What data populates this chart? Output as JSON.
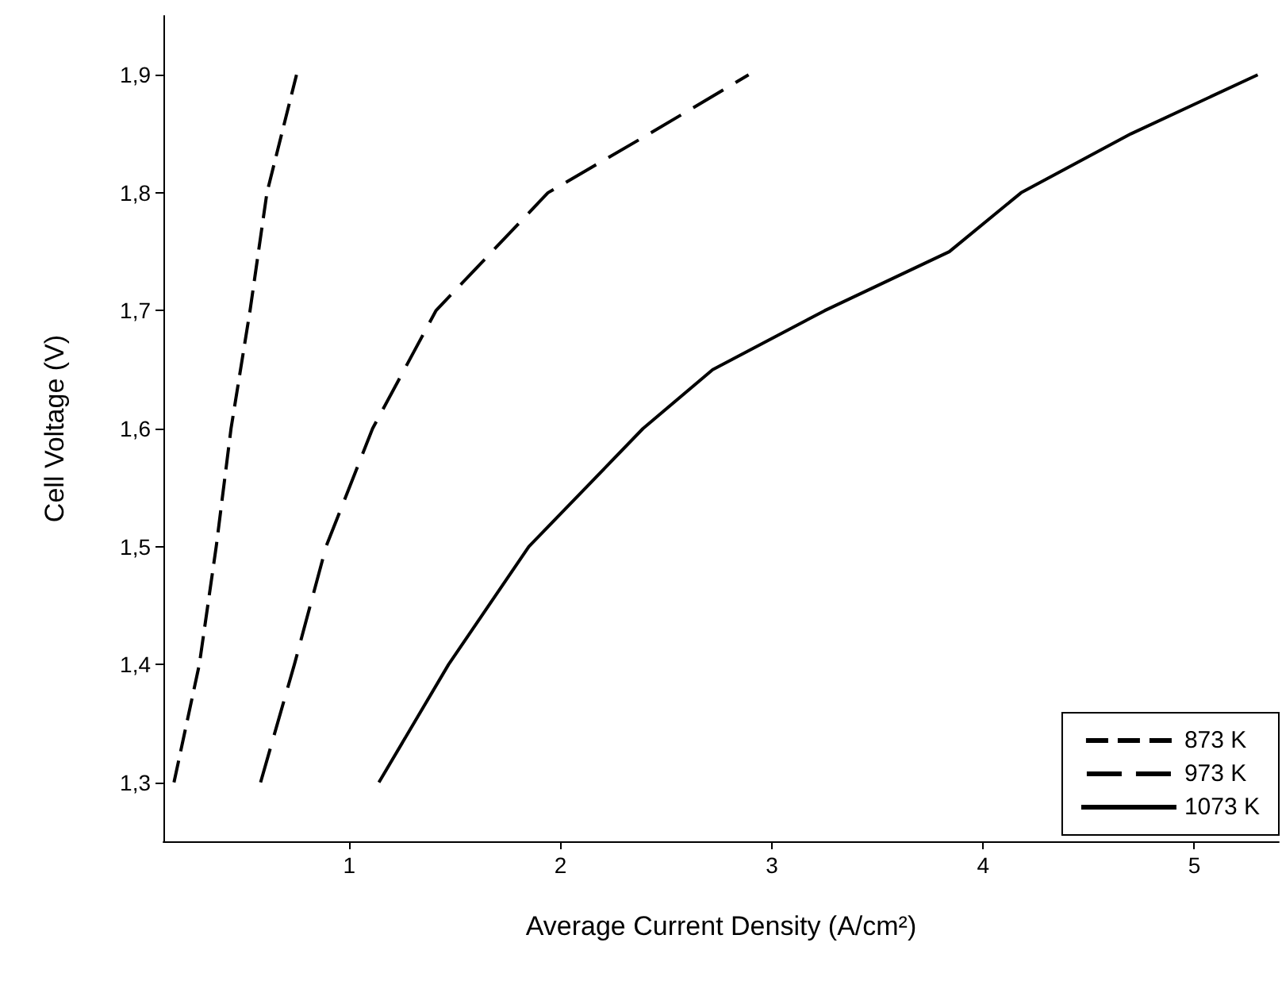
{
  "chart_data": {
    "type": "line",
    "xlabel": "Average Current Density (A/cm²)",
    "ylabel": "Cell Voltage (V)",
    "xlim": [
      0.12,
      5.4
    ],
    "xticks": [
      1,
      2,
      3,
      4,
      5
    ],
    "ylim": [
      1.25,
      1.95
    ],
    "yticks": [
      {
        "value": 1.3,
        "label": "1,3"
      },
      {
        "value": 1.4,
        "label": "1,4"
      },
      {
        "value": 1.5,
        "label": "1,5"
      },
      {
        "value": 1.6,
        "label": "1,6"
      },
      {
        "value": 1.7,
        "label": "1,7"
      },
      {
        "value": 1.8,
        "label": "1,8"
      },
      {
        "value": 1.9,
        "label": "1,9"
      }
    ],
    "legend": "bottom right",
    "grid": false,
    "marker": "none",
    "series": [
      {
        "name": "873 K",
        "color": "#000000",
        "line_style": "dashed",
        "x": [
          0.17,
          0.29,
          0.37,
          0.44,
          0.53,
          0.61,
          0.75
        ],
        "values": [
          1.3,
          1.4,
          1.5,
          1.6,
          1.7,
          1.8,
          1.9
        ]
      },
      {
        "name": "973 K",
        "color": "#000000",
        "line_style": "dashed",
        "x": [
          0.58,
          0.74,
          0.89,
          1.11,
          1.41,
          1.94,
          2.42,
          2.89
        ],
        "values": [
          1.3,
          1.4,
          1.5,
          1.6,
          1.7,
          1.8,
          1.85,
          1.9
        ]
      },
      {
        "name": "1073 K",
        "color": "#000000",
        "line_style": "solid",
        "x": [
          1.14,
          1.47,
          1.85,
          2.39,
          2.72,
          3.25,
          3.84,
          4.18,
          4.7,
          5.3
        ],
        "values": [
          1.3,
          1.4,
          1.5,
          1.6,
          1.65,
          1.7,
          1.75,
          1.8,
          1.85,
          1.9
        ]
      }
    ]
  }
}
